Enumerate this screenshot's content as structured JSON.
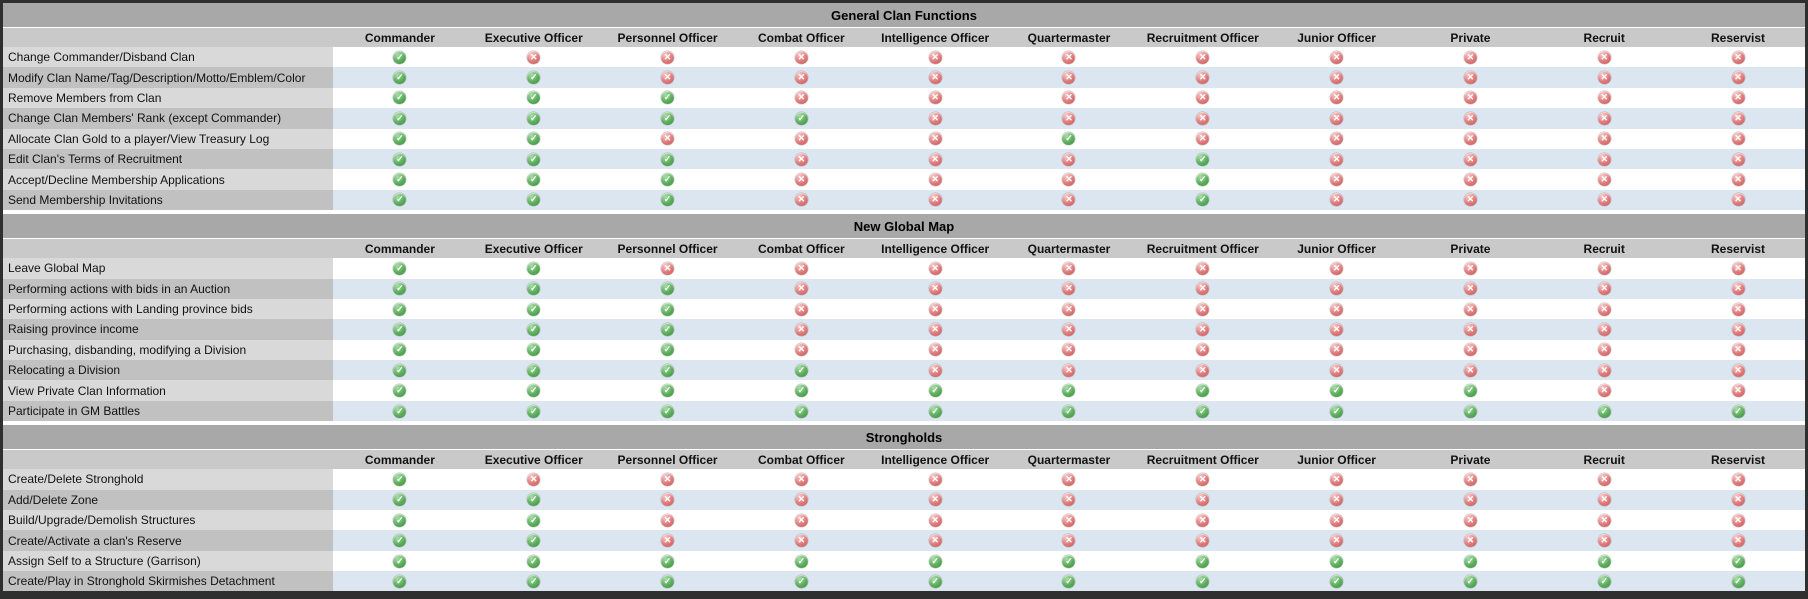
{
  "chart_data": [
    {
      "type": "table",
      "title": "General Clan Functions",
      "columns": [
        "Commander",
        "Executive Officer",
        "Personnel Officer",
        "Combat Officer",
        "Intelligence Officer",
        "Quartermaster",
        "Recruitment Officer",
        "Junior Officer",
        "Private",
        "Recruit",
        "Reservist"
      ],
      "rows": [
        {
          "label": "Change Commander/Disband Clan",
          "values": [
            1,
            0,
            0,
            0,
            0,
            0,
            0,
            0,
            0,
            0,
            0
          ]
        },
        {
          "label": "Modify Clan Name/Tag/Description/Motto/Emblem/Color",
          "values": [
            1,
            1,
            0,
            0,
            0,
            0,
            0,
            0,
            0,
            0,
            0
          ]
        },
        {
          "label": "Remove Members from Clan",
          "values": [
            1,
            1,
            1,
            0,
            0,
            0,
            0,
            0,
            0,
            0,
            0
          ]
        },
        {
          "label": "Change Clan Members' Rank (except Commander)",
          "values": [
            1,
            1,
            1,
            1,
            0,
            0,
            0,
            0,
            0,
            0,
            0
          ]
        },
        {
          "label": "Allocate Clan Gold to a player/View Treasury Log",
          "values": [
            1,
            1,
            0,
            0,
            0,
            1,
            0,
            0,
            0,
            0,
            0
          ]
        },
        {
          "label": "Edit Clan's Terms of Recruitment",
          "values": [
            1,
            1,
            1,
            0,
            0,
            0,
            1,
            0,
            0,
            0,
            0
          ]
        },
        {
          "label": "Accept/Decline Membership Applications",
          "values": [
            1,
            1,
            1,
            0,
            0,
            0,
            1,
            0,
            0,
            0,
            0
          ]
        },
        {
          "label": "Send Membership Invitations",
          "values": [
            1,
            1,
            1,
            0,
            0,
            0,
            1,
            0,
            0,
            0,
            0
          ]
        }
      ]
    },
    {
      "type": "table",
      "title": "New Global Map",
      "columns": [
        "Commander",
        "Executive Officer",
        "Personnel Officer",
        "Combat Officer",
        "Intelligence Officer",
        "Quartermaster",
        "Recruitment Officer",
        "Junior Officer",
        "Private",
        "Recruit",
        "Reservist"
      ],
      "rows": [
        {
          "label": "Leave Global Map",
          "values": [
            1,
            1,
            0,
            0,
            0,
            0,
            0,
            0,
            0,
            0,
            0
          ]
        },
        {
          "label": "Performing actions with bids in an Auction",
          "values": [
            1,
            1,
            1,
            0,
            0,
            0,
            0,
            0,
            0,
            0,
            0
          ]
        },
        {
          "label": "Performing actions with Landing province bids",
          "values": [
            1,
            1,
            1,
            0,
            0,
            0,
            0,
            0,
            0,
            0,
            0
          ]
        },
        {
          "label": "Raising province income",
          "values": [
            1,
            1,
            1,
            0,
            0,
            0,
            0,
            0,
            0,
            0,
            0
          ]
        },
        {
          "label": "Purchasing, disbanding, modifying a Division",
          "values": [
            1,
            1,
            1,
            0,
            0,
            0,
            0,
            0,
            0,
            0,
            0
          ]
        },
        {
          "label": "Relocating a Division",
          "values": [
            1,
            1,
            1,
            1,
            0,
            0,
            0,
            0,
            0,
            0,
            0
          ]
        },
        {
          "label": "View Private Clan Information",
          "values": [
            1,
            1,
            1,
            1,
            1,
            1,
            1,
            1,
            1,
            0,
            0
          ]
        },
        {
          "label": "Participate in GM Battles",
          "values": [
            1,
            1,
            1,
            1,
            1,
            1,
            1,
            1,
            1,
            1,
            1
          ]
        }
      ]
    },
    {
      "type": "table",
      "title": "Strongholds",
      "columns": [
        "Commander",
        "Executive Officer",
        "Personnel Officer",
        "Combat Officer",
        "Intelligence Officer",
        "Quartermaster",
        "Recruitment Officer",
        "Junior Officer",
        "Private",
        "Recruit",
        "Reservist"
      ],
      "rows": [
        {
          "label": "Create/Delete Stronghold",
          "values": [
            1,
            0,
            0,
            0,
            0,
            0,
            0,
            0,
            0,
            0,
            0
          ]
        },
        {
          "label": "Add/Delete Zone",
          "values": [
            1,
            1,
            0,
            0,
            0,
            0,
            0,
            0,
            0,
            0,
            0
          ]
        },
        {
          "label": "Build/Upgrade/Demolish Structures",
          "values": [
            1,
            1,
            0,
            0,
            0,
            0,
            0,
            0,
            0,
            0,
            0
          ]
        },
        {
          "label": "Create/Activate a clan's Reserve",
          "values": [
            1,
            1,
            0,
            0,
            0,
            0,
            0,
            0,
            0,
            0,
            0
          ]
        },
        {
          "label": "Assign Self to a Structure (Garrison)",
          "values": [
            1,
            1,
            1,
            1,
            1,
            1,
            1,
            1,
            1,
            1,
            1
          ]
        },
        {
          "label": "Create/Play in Stronghold Skirmishes Detachment",
          "values": [
            1,
            1,
            1,
            1,
            1,
            1,
            1,
            1,
            1,
            1,
            1
          ]
        }
      ]
    }
  ],
  "icons": {
    "granted": {
      "name": "check-circle-icon",
      "glyph": "✓",
      "color": "#4e9e4e",
      "meaning": "permission granted"
    },
    "denied": {
      "name": "cross-circle-icon",
      "glyph": "✕",
      "color": "#d06a6a",
      "meaning": "permission denied"
    }
  },
  "colors": {
    "section_title_bg": "#a8a8a8",
    "header_row_bg": "#c9c9c9",
    "label_odd_bg": "#d9d9d9",
    "label_even_bg": "#c1c1c1",
    "cell_odd_bg": "#ffffff",
    "cell_even_bg": "#dce6f1",
    "border": "#2f2f2f"
  }
}
